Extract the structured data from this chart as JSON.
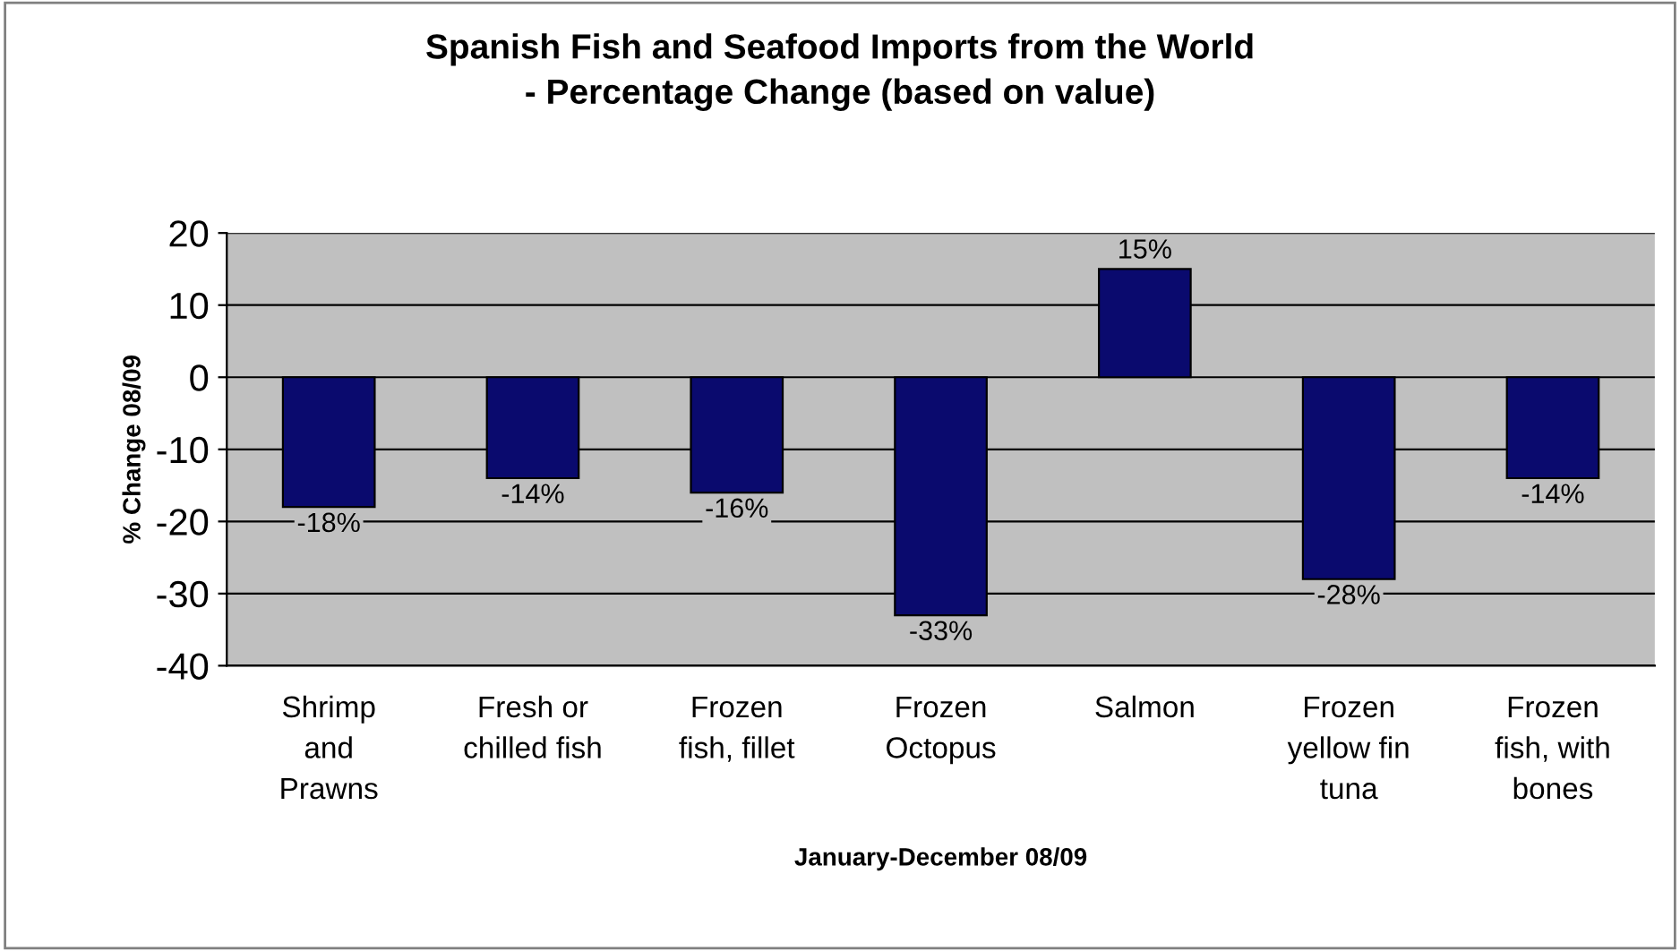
{
  "chart_data": {
    "type": "bar",
    "title": "Spanish Fish and Seafood Imports from the World\n- Percentage Change (based on value)",
    "xlabel": "January-December 08/09",
    "ylabel": "% Change 08/09",
    "categories": [
      "Shrimp\nand\nPrawns",
      "Fresh or\nchilled fish",
      "Frozen\nfish, fillet",
      "Frozen\nOctopus",
      "Salmon",
      "Frozen\nyellow fin\ntuna",
      "Frozen\nfish, with\nbones"
    ],
    "values": [
      -18,
      -14,
      -16,
      -33,
      15,
      -28,
      -14
    ],
    "value_labels": [
      "-18%",
      "-14%",
      "-16%",
      "-33%",
      "15%",
      "-28%",
      "-14%"
    ],
    "color": "#0a0a6e",
    "ylim": [
      -40,
      20
    ],
    "yticks": [
      -40,
      -30,
      -20,
      -10,
      0,
      10,
      20
    ],
    "grid": "y",
    "legend": false
  }
}
